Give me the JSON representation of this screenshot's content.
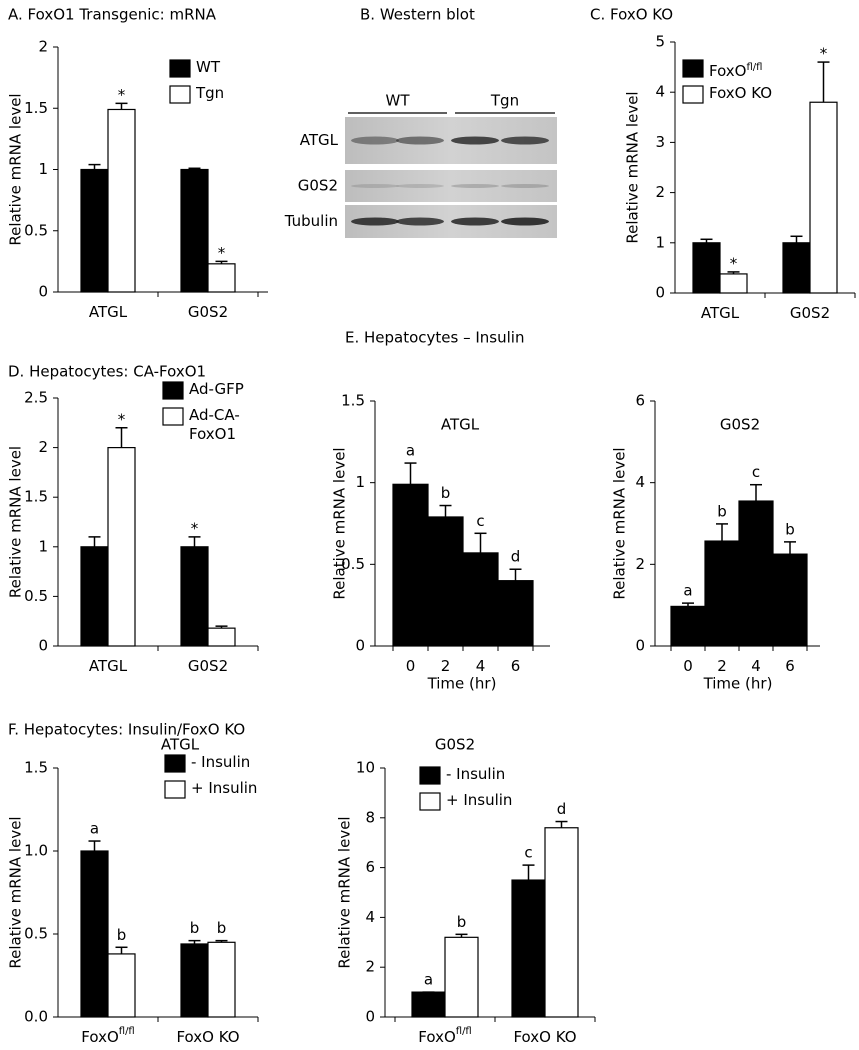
{
  "chart_data": [
    {
      "type": "bar",
      "panel_title": "A.  FoxO1 Transgenic: mRNA",
      "ylabel": "Relative mRNA level",
      "categories": [
        "ATGL",
        "G0S2"
      ],
      "series": [
        {
          "name": "WT",
          "color": "#000000",
          "values": [
            1.0,
            1.0
          ],
          "errors": [
            0.04,
            0.01
          ]
        },
        {
          "name": "Tgn",
          "color": "#ffffff",
          "values": [
            1.49,
            0.23
          ],
          "errors": [
            0.05,
            0.02
          ],
          "labels": [
            "*",
            "*"
          ]
        }
      ],
      "ylim": [
        0,
        2
      ],
      "yticks": [
        0,
        0.5,
        1,
        1.5,
        2
      ]
    },
    {
      "type": "bar",
      "panel_title": "C.  FoxO KO",
      "ylabel": "Relative mRNA level",
      "categories": [
        "ATGL",
        "G0S2"
      ],
      "series": [
        {
          "name": "FoxO",
          "name_sup": "fl/fl",
          "color": "#000000",
          "values": [
            1.0,
            1.0
          ],
          "errors": [
            0.07,
            0.13
          ]
        },
        {
          "name": "FoxO KO",
          "color": "#ffffff",
          "values": [
            0.38,
            3.8
          ],
          "errors": [
            0.04,
            0.8
          ],
          "labels": [
            "*",
            "*"
          ]
        }
      ],
      "ylim": [
        0,
        5
      ],
      "yticks": [
        0,
        1,
        2,
        3,
        4,
        5
      ]
    },
    {
      "type": "bar",
      "panel_title": "D.  Hepatocytes: CA-FoxO1",
      "ylabel": "Relative mRNA level",
      "categories": [
        "ATGL",
        "G0S2"
      ],
      "series": [
        {
          "name": "Ad-GFP",
          "color": "#000000",
          "values": [
            1.0,
            1.0
          ],
          "errors": [
            0.1,
            0.1
          ],
          "labels": [
            null,
            "*"
          ]
        },
        {
          "name": "Ad-CA-FoxO1",
          "color": "#ffffff",
          "values": [
            2.0,
            0.18
          ],
          "errors": [
            0.2,
            0.02
          ],
          "labels": [
            "*",
            null
          ]
        }
      ],
      "ylim": [
        0,
        2.5
      ],
      "yticks": [
        0,
        0.5,
        1,
        1.5,
        2,
        2.5
      ]
    },
    {
      "type": "bar",
      "panel_title": "E.  Hepatocytes – Insulin",
      "title": "ATGL",
      "ylabel": "Relative mRNA level",
      "xlabel": "Time  (hr)",
      "categories": [
        "0",
        "2",
        "4",
        "6"
      ],
      "series": [
        {
          "color": "#000000",
          "values": [
            0.99,
            0.79,
            0.57,
            0.4
          ],
          "errors": [
            0.13,
            0.07,
            0.12,
            0.07
          ],
          "labels": [
            "a",
            "b",
            "c",
            "d"
          ]
        }
      ],
      "ylim": [
        0,
        1.5
      ],
      "yticks": [
        0,
        0.5,
        1,
        1.5
      ]
    },
    {
      "type": "bar",
      "title": "G0S2",
      "ylabel": "Relative mRNA level",
      "xlabel": "Time  (hr)",
      "categories": [
        "0",
        "2",
        "4",
        "6"
      ],
      "series": [
        {
          "color": "#000000",
          "values": [
            0.97,
            2.57,
            3.55,
            2.25
          ],
          "errors": [
            0.08,
            0.42,
            0.4,
            0.3
          ],
          "labels": [
            "a",
            "b",
            "c",
            "b"
          ]
        }
      ],
      "ylim": [
        0,
        6
      ],
      "yticks": [
        0,
        2,
        4,
        6
      ]
    },
    {
      "type": "bar",
      "panel_title": "F.  Hepatocytes: Insulin/FoxO KO",
      "title": "ATGL",
      "ylabel": "Relative mRNA level",
      "categories": [
        "FoxO",
        "FoxO KO"
      ],
      "category_sups": [
        "fl/fl",
        null
      ],
      "series": [
        {
          "name": "- Insulin",
          "color": "#000000",
          "values": [
            1.0,
            0.44
          ],
          "errors": [
            0.06,
            0.02
          ],
          "labels": [
            "a",
            "b"
          ]
        },
        {
          "name": "+ Insulin",
          "color": "#ffffff",
          "values": [
            0.38,
            0.45
          ],
          "errors": [
            0.04,
            0.01
          ],
          "labels": [
            "b",
            "b"
          ]
        }
      ],
      "ylim": [
        0,
        1.5
      ],
      "yticks": [
        {
          "value": 0,
          "label": "0.0"
        },
        0.5,
        {
          "value": 1,
          "label": "1.0"
        },
        1.5
      ]
    },
    {
      "type": "bar",
      "title": "G0S2",
      "ylabel": "Relative mRNA level",
      "categories": [
        "FoxO",
        "FoxO KO"
      ],
      "category_sups": [
        "fl/fl",
        null
      ],
      "series": [
        {
          "name": "- Insulin",
          "color": "#000000",
          "values": [
            1.0,
            5.5
          ],
          "errors": [
            0,
            0.6
          ],
          "labels": [
            "a",
            "c"
          ]
        },
        {
          "name": "+ Insulin",
          "color": "#ffffff",
          "values": [
            3.2,
            7.6
          ],
          "errors": [
            0.12,
            0.25
          ],
          "labels": [
            "b",
            "d"
          ]
        }
      ],
      "ylim": [
        0,
        10
      ],
      "yticks": [
        0,
        2,
        4,
        6,
        8,
        10
      ]
    }
  ],
  "western_blot": {
    "title": "B.  Western blot",
    "groups": [
      "WT",
      "Tgn"
    ],
    "rows": [
      "ATGL",
      "G0S2",
      "Tubulin"
    ]
  }
}
